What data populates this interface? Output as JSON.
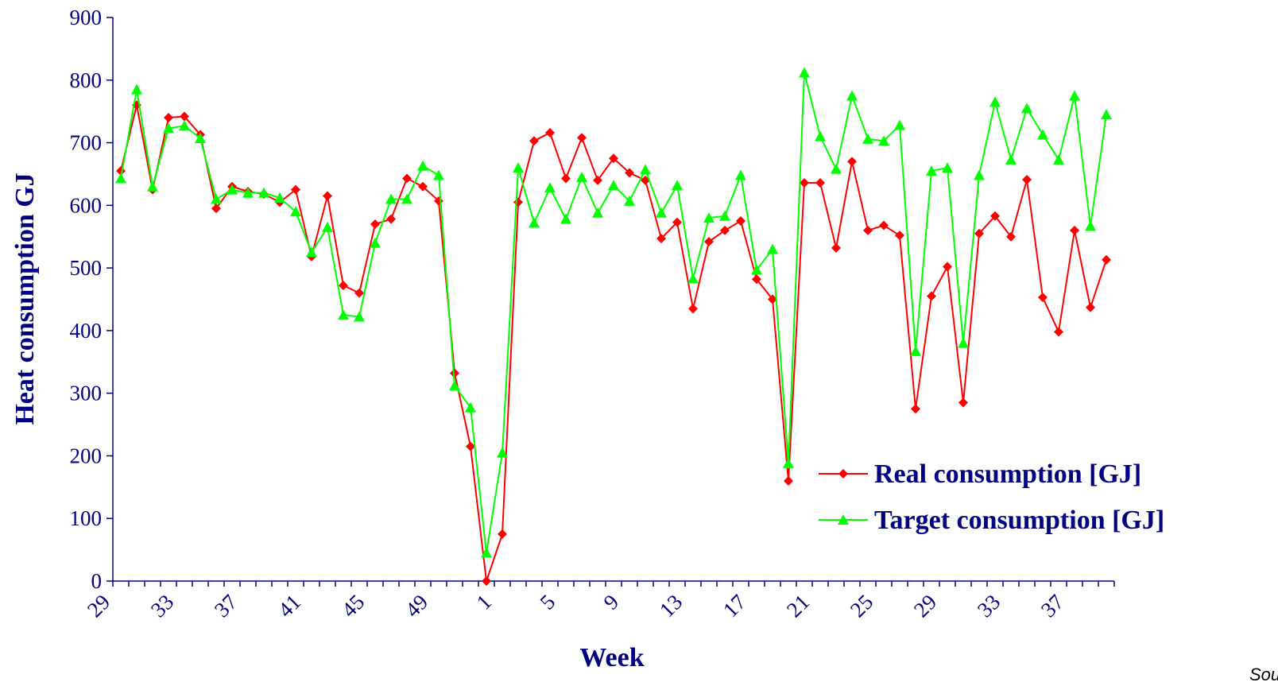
{
  "chart_data": {
    "type": "line",
    "x_label": "Week",
    "y_label": "Heat consumption GJ",
    "source": "Source: ENVI",
    "categories": [
      "29",
      null,
      null,
      null,
      "33",
      null,
      null,
      null,
      "37",
      null,
      null,
      null,
      "41",
      null,
      null,
      null,
      "45",
      null,
      null,
      null,
      "49",
      null,
      null,
      null,
      "1",
      null,
      null,
      null,
      "5",
      null,
      null,
      null,
      "9",
      null,
      null,
      null,
      "13",
      null,
      null,
      null,
      "17",
      null,
      null,
      null,
      "21",
      null,
      null,
      null,
      "25",
      null,
      null,
      null,
      "29",
      null,
      null,
      null,
      "33",
      null,
      null,
      null,
      "37",
      null,
      null
    ],
    "series": [
      {
        "name": "Real consumption [GJ]",
        "color": "#ff0000",
        "marker": "diamond",
        "values": [
          655,
          760,
          625,
          740,
          742,
          713,
          595,
          630,
          622,
          618,
          605,
          625,
          518,
          615,
          472,
          460,
          570,
          578,
          643,
          630,
          607,
          332,
          215,
          0,
          75,
          605,
          703,
          716,
          643,
          708,
          640,
          675,
          652,
          640,
          547,
          573,
          435,
          542,
          560,
          575,
          482,
          450,
          160,
          636,
          636,
          532,
          670,
          560,
          568,
          552,
          275,
          455,
          502,
          285,
          555,
          583,
          550,
          641,
          453,
          398,
          560,
          437,
          513
        ]
      },
      {
        "name": "Target consumption [GJ]",
        "color": "#00ff00",
        "marker": "triangle",
        "values": [
          643,
          785,
          630,
          723,
          727,
          707,
          610,
          625,
          620,
          620,
          612,
          590,
          525,
          565,
          425,
          422,
          540,
          610,
          610,
          663,
          648,
          312,
          277,
          45,
          205,
          660,
          572,
          628,
          578,
          645,
          588,
          632,
          607,
          657,
          588,
          632,
          483,
          580,
          583,
          648,
          497,
          530,
          188,
          812,
          710,
          658,
          775,
          706,
          703,
          728,
          367,
          655,
          660,
          380,
          648,
          765,
          673,
          755,
          713,
          673,
          775,
          567,
          745
        ]
      }
    ],
    "ylim": [
      0,
      900
    ],
    "yticks": [
      0,
      100,
      200,
      300,
      400,
      500,
      600,
      700,
      800,
      900
    ],
    "grid": false
  }
}
